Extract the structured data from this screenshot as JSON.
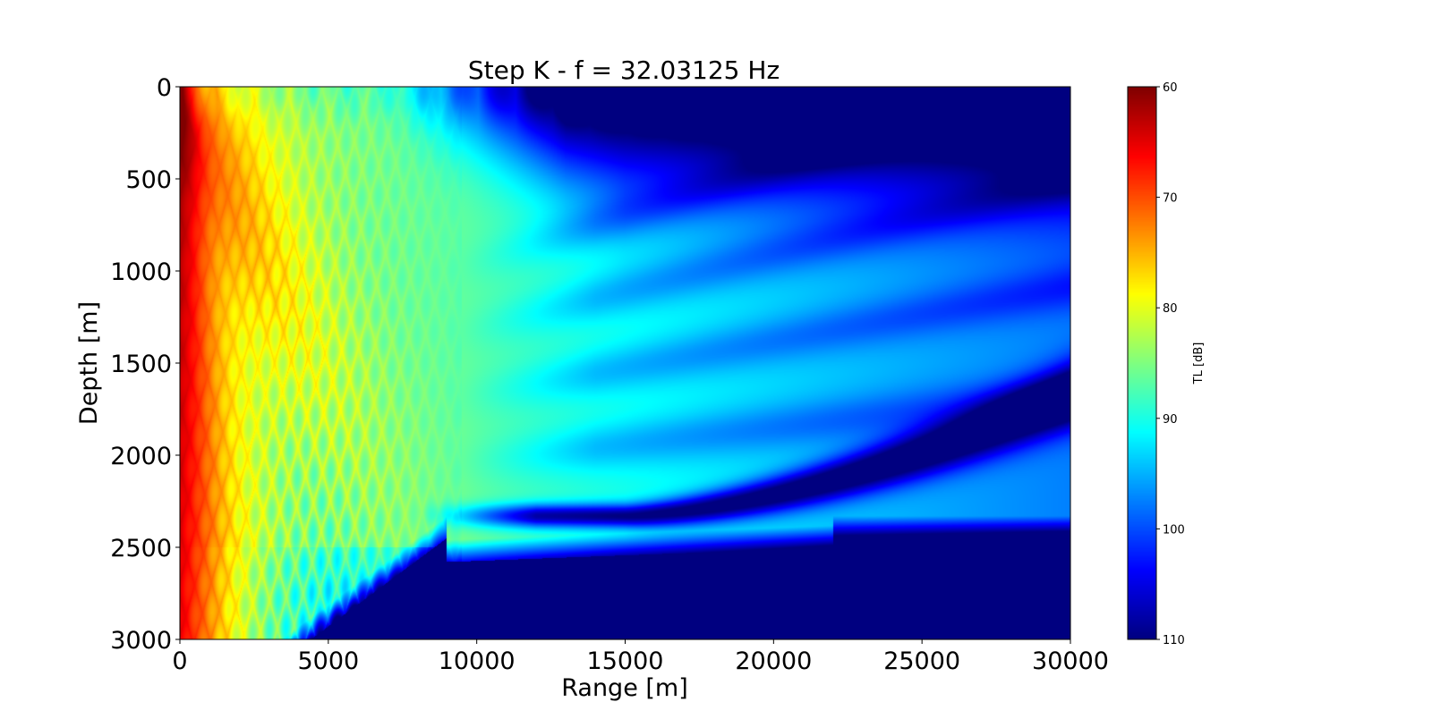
{
  "chart_data": {
    "type": "heatmap",
    "title": "Step K - f = 32.03125 Hz",
    "xlabel": "Range [m]",
    "ylabel": "Depth [m]",
    "xlim": [
      0,
      30000
    ],
    "ylim": [
      3000,
      0
    ],
    "x_ticks": [
      0,
      5000,
      10000,
      15000,
      20000,
      25000,
      30000
    ],
    "y_ticks": [
      0,
      500,
      1000,
      1500,
      2000,
      2500,
      3000
    ],
    "y_inverted": true,
    "grid": false,
    "colormap": "jet",
    "colorbar": {
      "label": "TL [dB]",
      "range": [
        60,
        110
      ],
      "ticks": [
        60,
        70,
        80,
        90,
        100,
        110
      ],
      "reversed": true
    },
    "field_description": "Transmission loss field of an acoustic source near the surface at zero range; loss generally increases with range, high loss (blue) near surface and below about 2450 m depth beyond about 9000 m range, interference fringes curving upward with range",
    "source_depth": 100,
    "bottom_depth_far": 2450,
    "features": [
      {
        "name": "near-source high-intensity column",
        "range": [
          0,
          2000
        ],
        "depth": [
          0,
          3000
        ],
        "tl": 65
      },
      {
        "name": "deep shadow null",
        "range": [
          10000,
          30000
        ],
        "depth": [
          1700,
          2350
        ],
        "tl": 108
      },
      {
        "name": "surface shadow zone",
        "range": [
          8000,
          30000
        ],
        "depth": [
          0,
          400
        ],
        "tl": 102
      },
      {
        "name": "bottom zone",
        "range": [
          9000,
          30000
        ],
        "depth": [
          2450,
          3000
        ],
        "tl": 110
      }
    ]
  }
}
